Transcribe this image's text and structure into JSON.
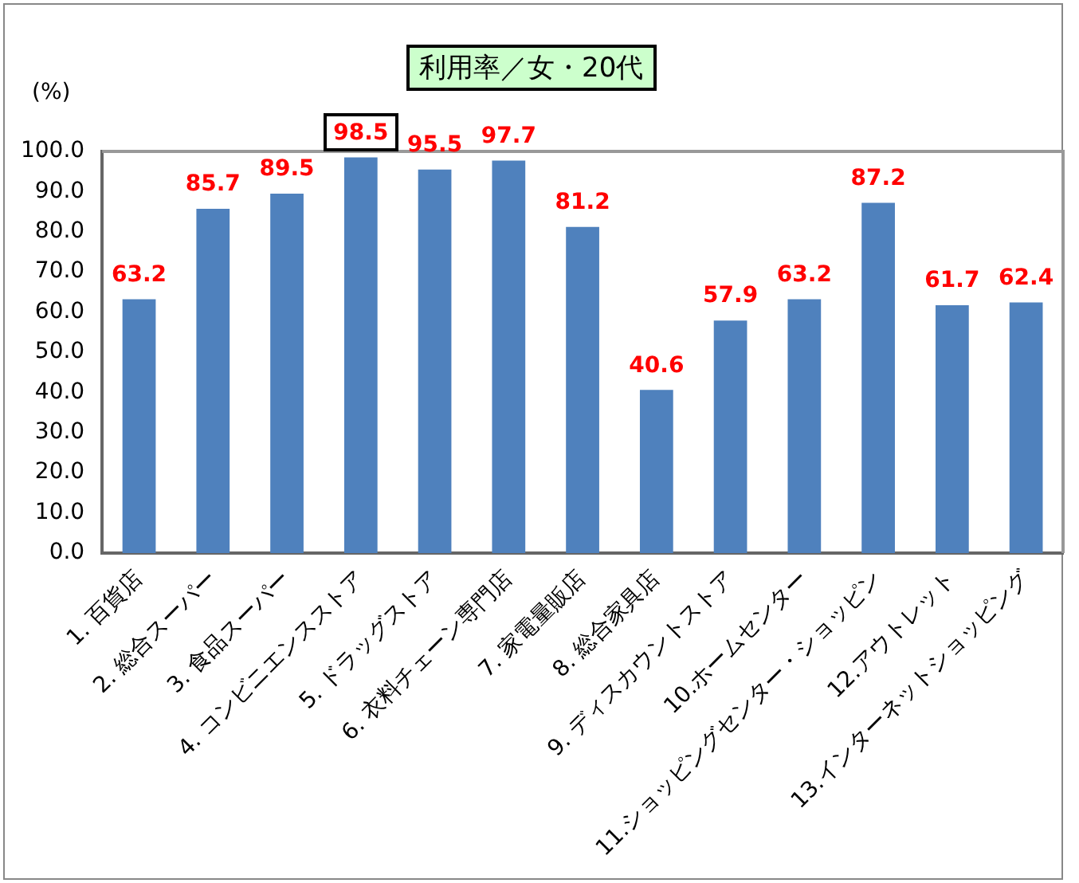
{
  "chart_data": {
    "type": "bar",
    "title": "利用率／女・20代",
    "ylabel": "(%)",
    "categories": [
      "1. 百貨店",
      "2. 総合スーパー",
      "3. 食品スーパー",
      "4. コンビニエンスストア",
      "5. ドラッグストア",
      "6. 衣料チェーン専門店",
      "7. 家電量販店",
      "8. 総合家具店",
      "9. ディスカウントストア",
      "10.ホームセンター",
      "11.ショッピングセンター・ショッピン",
      "12.アウトレット",
      "13.インターネットショッピング"
    ],
    "values": [
      63.2,
      85.7,
      89.5,
      98.5,
      95.5,
      97.7,
      81.2,
      40.6,
      57.9,
      63.2,
      87.2,
      61.7,
      62.4
    ],
    "color": "#4f81bd",
    "ylim": [
      0,
      100
    ],
    "yticks": [
      {
        "value": 0,
        "label": "0.0"
      },
      {
        "value": 10,
        "label": "10.0"
      },
      {
        "value": 20,
        "label": "20.0"
      },
      {
        "value": 30,
        "label": "30.0"
      },
      {
        "value": 40,
        "label": "40.0"
      },
      {
        "value": 50,
        "label": "50.0"
      },
      {
        "value": 60,
        "label": "60.0"
      },
      {
        "value": 70,
        "label": "70.0"
      },
      {
        "value": 80,
        "label": "80.0"
      },
      {
        "value": 90,
        "label": "90.0"
      },
      {
        "value": 100,
        "label": "100.0"
      }
    ],
    "data_labels": true,
    "grid": false,
    "legend": false
  }
}
